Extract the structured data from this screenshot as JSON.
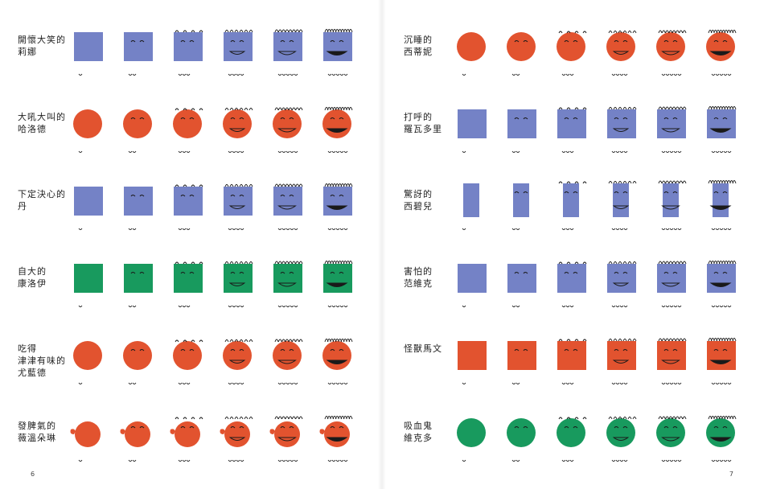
{
  "colors": {
    "blue": "#7482c6",
    "red": "#e2532f",
    "green": "#189a5e",
    "ink": "#1a1a1a"
  },
  "page_numbers": {
    "left": "6",
    "right": "7"
  },
  "left_page": [
    {
      "label": "開懷大笑的\n莉娜",
      "color": "blue",
      "shape": "square",
      "stage_count": 6
    },
    {
      "label": "大吼大叫的\n哈洛德",
      "color": "red",
      "shape": "circle",
      "stage_count": 6
    },
    {
      "label": "下定決心的\n丹",
      "color": "blue",
      "shape": "square",
      "stage_count": 6
    },
    {
      "label": "自大的\n康洛伊",
      "color": "green",
      "shape": "square",
      "stage_count": 6
    },
    {
      "label": "吃得\n津津有味的\n尤藍德",
      "color": "red",
      "shape": "circle",
      "stage_count": 6
    },
    {
      "label": "發脾氣的\n薇溫朵琳",
      "color": "red",
      "shape": "profile",
      "stage_count": 6
    }
  ],
  "right_page": [
    {
      "label": "沉睡的\n西蒂妮",
      "color": "red",
      "shape": "circle",
      "stage_count": 6
    },
    {
      "label": "打呼的\n羅瓦多里",
      "color": "blue",
      "shape": "square",
      "stage_count": 6
    },
    {
      "label": "驚訝的\n西碧兒",
      "color": "blue",
      "shape": "tall",
      "stage_count": 6
    },
    {
      "label": "害怕的\n范維克",
      "color": "blue",
      "shape": "square",
      "stage_count": 6
    },
    {
      "label": "怪獸馬文",
      "color": "red",
      "shape": "square",
      "stage_count": 6
    },
    {
      "label": "吸血鬼\n維克多",
      "color": "green",
      "shape": "circle",
      "stage_count": 6
    }
  ]
}
